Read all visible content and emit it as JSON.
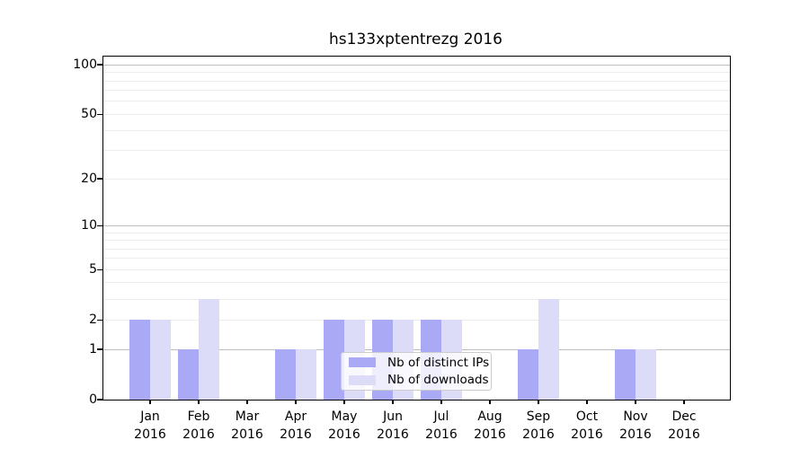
{
  "chart_data": {
    "type": "bar",
    "title": "hs133xptentrezg 2016",
    "categories": [
      {
        "month": "Jan",
        "year": "2016"
      },
      {
        "month": "Feb",
        "year": "2016"
      },
      {
        "month": "Mar",
        "year": "2016"
      },
      {
        "month": "Apr",
        "year": "2016"
      },
      {
        "month": "May",
        "year": "2016"
      },
      {
        "month": "Jun",
        "year": "2016"
      },
      {
        "month": "Jul",
        "year": "2016"
      },
      {
        "month": "Aug",
        "year": "2016"
      },
      {
        "month": "Sep",
        "year": "2016"
      },
      {
        "month": "Oct",
        "year": "2016"
      },
      {
        "month": "Nov",
        "year": "2016"
      },
      {
        "month": "Dec",
        "year": "2016"
      }
    ],
    "series": [
      {
        "name": "Nb of distinct IPs",
        "color": "#a9a9f5",
        "values": [
          2,
          1,
          0,
          1,
          2,
          2,
          2,
          0,
          1,
          0,
          1,
          0
        ]
      },
      {
        "name": "Nb of downloads",
        "color": "#dcdcf8",
        "values": [
          2,
          3,
          0,
          1,
          2,
          2,
          2,
          0,
          3,
          0,
          1,
          0
        ]
      }
    ],
    "yscale": "log1p",
    "yticks": [
      0,
      1,
      2,
      5,
      10,
      20,
      50,
      100
    ],
    "ytick_major_values": [
      1,
      10,
      100
    ],
    "yminor_grid_values": [
      2,
      3,
      4,
      5,
      6,
      7,
      8,
      9,
      20,
      30,
      40,
      50,
      60,
      70,
      80,
      90
    ],
    "ylim": [
      0,
      112
    ],
    "xlabel": "",
    "ylabel": "",
    "grid": true,
    "legend_position": "lower center"
  },
  "colors": {
    "background": "#ffffff",
    "spine": "#000000",
    "grid_major": "#bdbdbd",
    "grid_minor": "#ececec",
    "series_ips": "#a9a9f5",
    "series_downloads": "#dcdcf8",
    "legend_border": "#cccccc"
  }
}
